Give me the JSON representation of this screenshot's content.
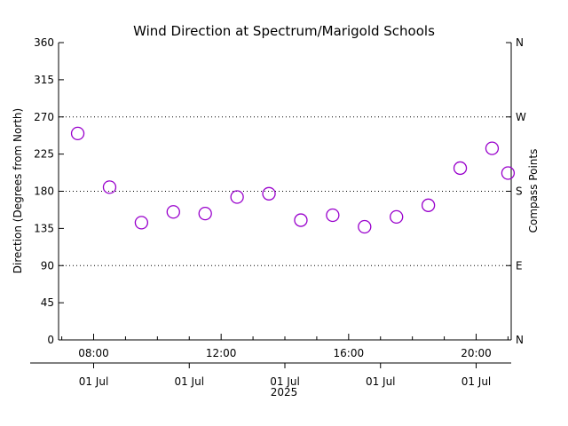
{
  "chart_data": {
    "type": "scatter",
    "title": "Wind Direction at Spectrum/Marigold Schools",
    "ylabel": "Direction (Degrees from North)",
    "y2label": "Compass Points",
    "ylim": [
      0,
      360
    ],
    "yticks": [
      "0",
      "45",
      "90",
      "135",
      "180",
      "225",
      "270",
      "315",
      "360"
    ],
    "y2ticks": [
      {
        "value": 0,
        "label": "N"
      },
      {
        "value": 90,
        "label": "E"
      },
      {
        "value": 180,
        "label": "S"
      },
      {
        "value": 270,
        "label": "W"
      },
      {
        "value": 360,
        "label": "N"
      }
    ],
    "hgrid": [
      90,
      180,
      270
    ],
    "grid_style": "dotted",
    "xlim_hours": [
      6.9,
      21.1
    ],
    "xticks_time": [
      {
        "hour": 8,
        "label": "08:00"
      },
      {
        "hour": 12,
        "label": "12:00"
      },
      {
        "hour": 16,
        "label": "16:00"
      },
      {
        "hour": 20,
        "label": "20:00"
      }
    ],
    "xticks_date": [
      {
        "hour": 8,
        "label": "01 Jul"
      },
      {
        "hour": 11,
        "label": "01 Jul"
      },
      {
        "hour": 14,
        "label": "01 Jul"
      },
      {
        "hour": 17,
        "label": "01 Jul"
      },
      {
        "hour": 20,
        "label": "01 Jul"
      }
    ],
    "year_label": "2025",
    "marker": "open-circle",
    "marker_color": "#9900cc",
    "x": [
      "07:30",
      "08:30",
      "09:30",
      "10:30",
      "11:30",
      "12:30",
      "13:30",
      "14:30",
      "15:30",
      "16:30",
      "17:30",
      "18:30",
      "19:30",
      "20:30",
      "21:00"
    ],
    "x_hours": [
      7.5,
      8.5,
      9.5,
      10.5,
      11.5,
      12.5,
      13.5,
      14.5,
      15.5,
      16.5,
      17.5,
      18.5,
      19.5,
      20.5,
      21.0
    ],
    "y": [
      250,
      185,
      142,
      155,
      153,
      173,
      177,
      145,
      151,
      137,
      149,
      163,
      208,
      232,
      202
    ]
  }
}
